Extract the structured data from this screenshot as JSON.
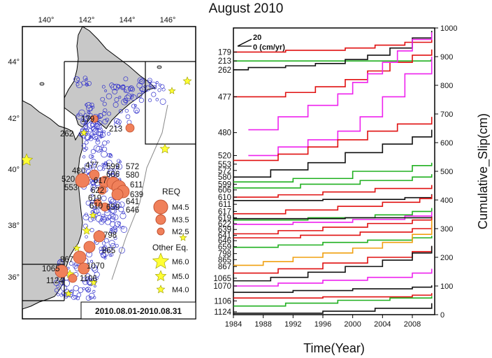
{
  "title": "August 2010",
  "map": {
    "lon_ticks": [
      "140°",
      "142°",
      "144°",
      "146°"
    ],
    "lat_ticks": [
      "44°",
      "42°",
      "40°",
      "38°",
      "36°"
    ],
    "date_range": "2010.08.01-2010.08.31",
    "legend": {
      "req_title": "REQ",
      "req_items": [
        "M4.5",
        "M3.5",
        "M2.5"
      ],
      "other_title": "Other Eq.",
      "other_items": [
        "M6.0",
        "M5.0",
        "M4.0"
      ]
    },
    "colors": {
      "land": "#c8c8c8",
      "req": "#f0805a",
      "label": "#cc1111",
      "star": "#ffff33",
      "small_eq": "#2222cc"
    },
    "labels": [
      "179",
      "262",
      "213",
      "477",
      "520",
      "480",
      "553",
      "572",
      "599",
      "606",
      "580",
      "611",
      "617",
      "622",
      "619",
      "639",
      "610",
      "659",
      "641",
      "646",
      "798",
      "865",
      "867",
      "1070",
      "1065",
      "1124",
      "1106"
    ]
  },
  "chart_data": {
    "type": "line",
    "title": "August 2010",
    "xlabel": "Time(Year)",
    "ylabel": "Cumulative_Slip(cm)",
    "xlim": [
      1984,
      2011
    ],
    "ylim": [
      0,
      1000
    ],
    "x_ticks": [
      1984,
      1988,
      1992,
      1996,
      2000,
      2004,
      2008
    ],
    "y_ticks": [
      0,
      100,
      200,
      300,
      400,
      500,
      600,
      700,
      800,
      900,
      1000
    ],
    "scale_label": "0 (cm/yr)",
    "scale_value": "20",
    "station_labels": [
      {
        "name": "179",
        "y": 916
      },
      {
        "name": "213",
        "y": 885
      },
      {
        "name": "262",
        "y": 854
      },
      {
        "name": "477",
        "y": 760
      },
      {
        "name": "480",
        "y": 635
      },
      {
        "name": "520",
        "y": 555
      },
      {
        "name": "553",
        "y": 525
      },
      {
        "name": "572",
        "y": 503
      },
      {
        "name": "580",
        "y": 480
      },
      {
        "name": "599",
        "y": 455
      },
      {
        "name": "606",
        "y": 435
      },
      {
        "name": "610",
        "y": 410
      },
      {
        "name": "611",
        "y": 385
      },
      {
        "name": "617",
        "y": 360
      },
      {
        "name": "619",
        "y": 338
      },
      {
        "name": "622",
        "y": 317
      },
      {
        "name": "639",
        "y": 297
      },
      {
        "name": "641",
        "y": 277
      },
      {
        "name": "646",
        "y": 258
      },
      {
        "name": "659",
        "y": 237
      },
      {
        "name": "798",
        "y": 213
      },
      {
        "name": "865",
        "y": 192
      },
      {
        "name": "867",
        "y": 168
      },
      {
        "name": "1065",
        "y": 127
      },
      {
        "name": "1070",
        "y": 100
      },
      {
        "name": "1106",
        "y": 48
      },
      {
        "name": "1124",
        "y": 10
      }
    ],
    "series": [
      {
        "color": "#e01010",
        "x": [
          1984,
          1991,
          1999,
          2003,
          2007,
          2010.6
        ],
        "y": [
          916,
          922,
          930,
          940,
          950,
          960
        ]
      },
      {
        "color": "#20b020",
        "x": [
          1984,
          2010.5
        ],
        "y": [
          885,
          890
        ]
      },
      {
        "color": "#111111",
        "x": [
          1984,
          1986,
          1991,
          1995,
          1999,
          2002,
          2005,
          2008,
          2010.6
        ],
        "y": [
          854,
          862,
          868,
          876,
          890,
          905,
          930,
          965,
          990
        ]
      },
      {
        "color": "#e01010",
        "x": [
          1984,
          1991,
          1995,
          1999,
          2002,
          2005,
          2008,
          2010.6
        ],
        "y": [
          760,
          775,
          795,
          820,
          850,
          880,
          905,
          925
        ]
      },
      {
        "color": "#ee22ee",
        "x": [
          1986,
          1990,
          1994,
          1998,
          2000,
          2002,
          2004,
          2006,
          2008,
          2010.6
        ],
        "y": [
          645,
          690,
          730,
          770,
          810,
          840,
          880,
          920,
          960,
          985
        ]
      },
      {
        "color": "#ee22ee",
        "x": [
          1986,
          1990,
          1994,
          1998,
          2001,
          2004,
          2007,
          2010.6
        ],
        "y": [
          555,
          585,
          610,
          640,
          690,
          760,
          840,
          900
        ]
      },
      {
        "color": "#e01010",
        "x": [
          1984,
          1990,
          1994,
          1998,
          2002,
          2006,
          2010.6
        ],
        "y": [
          538,
          560,
          585,
          610,
          640,
          665,
          690
        ]
      },
      {
        "color": "#111111",
        "x": [
          1984,
          1989,
          1994,
          1999,
          2004,
          2008,
          2010.6
        ],
        "y": [
          480,
          505,
          530,
          565,
          595,
          620,
          645
        ]
      },
      {
        "color": "#20b020",
        "x": [
          1984,
          1992,
          2000,
          2008,
          2010.6
        ],
        "y": [
          463,
          475,
          500,
          520,
          530
        ]
      },
      {
        "color": "#20b020",
        "x": [
          1984,
          1993,
          2001,
          2008,
          2010.6
        ],
        "y": [
          442,
          455,
          468,
          480,
          490
        ]
      },
      {
        "color": "#e01010",
        "x": [
          1984,
          1990,
          1996,
          2003,
          2010.6
        ],
        "y": [
          410,
          418,
          428,
          440,
          452
        ]
      },
      {
        "color": "#111111",
        "x": [
          1984,
          1996,
          2007,
          2010.6
        ],
        "y": [
          398,
          402,
          408,
          420
        ]
      },
      {
        "color": "#e01010",
        "x": [
          1984,
          1991,
          1998,
          2004,
          2009,
          2010.6
        ],
        "y": [
          352,
          365,
          378,
          392,
          405,
          418
        ]
      },
      {
        "color": "#20b020",
        "x": [
          1984,
          1994,
          2003,
          2008,
          2010.6
        ],
        "y": [
          330,
          338,
          348,
          360,
          372
        ]
      },
      {
        "color": "#ee22ee",
        "x": [
          1984,
          1992,
          2000,
          2007,
          2010.6
        ],
        "y": [
          315,
          322,
          332,
          344,
          360
        ]
      },
      {
        "color": "#111111",
        "x": [
          1984,
          1999,
          2010.6
        ],
        "y": [
          335,
          338,
          342
        ]
      },
      {
        "color": "#e01010",
        "x": [
          1984,
          1990,
          1996,
          2002,
          2008,
          2010.6
        ],
        "y": [
          282,
          293,
          305,
          318,
          330,
          340
        ]
      },
      {
        "color": "#e01010",
        "x": [
          1984,
          1993,
          2001,
          2008,
          2010.6
        ],
        "y": [
          268,
          277,
          288,
          300,
          315
        ]
      },
      {
        "color": "#20b020",
        "x": [
          1984,
          1990,
          1996,
          2002,
          2008,
          2010.6
        ],
        "y": [
          235,
          243,
          252,
          260,
          268,
          275
        ]
      },
      {
        "color": "#f0a010",
        "x": [
          1984,
          1988,
          1992,
          1996,
          2000,
          2004,
          2008,
          2010.6
        ],
        "y": [
          172,
          185,
          200,
          215,
          232,
          252,
          280,
          330
        ]
      },
      {
        "color": "#e01010",
        "x": [
          1984,
          1990,
          1996,
          2002,
          2008,
          2010.6
        ],
        "y": [
          145,
          160,
          180,
          200,
          220,
          238
        ]
      },
      {
        "color": "#111111",
        "x": [
          1984,
          1989,
          1994,
          1999,
          2004,
          2008,
          2010.6
        ],
        "y": [
          118,
          130,
          148,
          168,
          190,
          215,
          240
        ]
      },
      {
        "color": "#ee22ee",
        "x": [
          1984,
          1990,
          1996,
          2002,
          2008,
          2010.6
        ],
        "y": [
          100,
          110,
          120,
          130,
          145,
          160
        ]
      },
      {
        "color": "#111111",
        "x": [
          1984,
          1992,
          2000,
          2008,
          2010.6
        ],
        "y": [
          78,
          84,
          90,
          96,
          102
        ]
      },
      {
        "color": "#e01010",
        "x": [
          1984,
          1996,
          2008,
          2010.6
        ],
        "y": [
          58,
          62,
          68,
          75
        ]
      },
      {
        "color": "#20b020",
        "x": [
          1984,
          1991,
          1998,
          2005,
          2010.6
        ],
        "y": [
          30,
          40,
          50,
          58,
          65
        ]
      },
      {
        "color": "#111111",
        "x": [
          1984,
          1996,
          2003,
          2010.6
        ],
        "y": [
          5,
          12,
          22,
          40
        ]
      }
    ]
  }
}
